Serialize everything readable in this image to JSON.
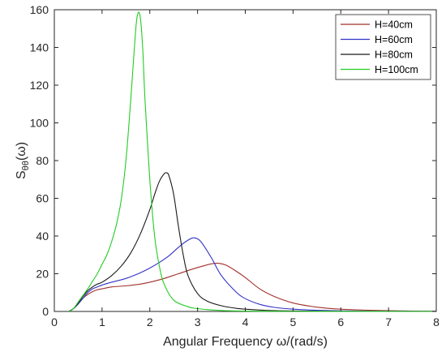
{
  "chart_data": {
    "type": "line",
    "title": "",
    "xlabel": "Angular Frequency  ω/(rad/s)",
    "ylabel": {
      "main": "S",
      "sub": "θθ",
      "tail": "(ω)"
    },
    "xlim": [
      0,
      8
    ],
    "ylim": [
      0,
      160
    ],
    "xticks": [
      "0",
      "1",
      "2",
      "3",
      "4",
      "5",
      "6",
      "7",
      "8"
    ],
    "yticks": [
      "0",
      "20",
      "40",
      "60",
      "80",
      "100",
      "120",
      "140",
      "160"
    ],
    "grid": false,
    "legend_position": "top-right",
    "series": [
      {
        "name": "H=40cm",
        "color": "#a0302a",
        "x": [
          0.3,
          0.4,
          0.5,
          0.6,
          0.7,
          0.8,
          0.9,
          1.0,
          1.2,
          1.5,
          1.8,
          2.0,
          2.3,
          2.6,
          2.9,
          3.1,
          3.3,
          3.45,
          3.6,
          3.8,
          4.0,
          4.3,
          4.6,
          5.0,
          5.5,
          6.0,
          6.5,
          7.0,
          7.5,
          8.0
        ],
        "y": [
          0,
          1.5,
          4,
          7,
          9,
          10.5,
          11.5,
          12,
          13,
          13.6,
          14.5,
          15.5,
          17.5,
          20,
          22.5,
          24,
          25.3,
          25.5,
          24.5,
          21.5,
          18,
          12,
          8,
          4.5,
          2.3,
          1.2,
          0.7,
          0.4,
          0.2,
          0.1
        ]
      },
      {
        "name": "H=60cm",
        "color": "#3232c8",
        "x": [
          0.3,
          0.4,
          0.5,
          0.6,
          0.7,
          0.8,
          0.9,
          1.0,
          1.2,
          1.5,
          1.8,
          2.0,
          2.2,
          2.4,
          2.6,
          2.75,
          2.9,
          3.0,
          3.1,
          3.3,
          3.5,
          3.8,
          4.0,
          4.3,
          4.6,
          5.0,
          5.5,
          6.0,
          7.0,
          8.0
        ],
        "y": [
          0,
          1.5,
          4,
          7,
          10,
          12,
          13,
          14,
          15.5,
          17.5,
          20.5,
          23,
          26,
          29.5,
          34,
          37,
          39,
          38.5,
          36,
          28,
          19,
          10.5,
          6.8,
          3.8,
          2.2,
          1.2,
          0.6,
          0.3,
          0.1,
          0.05
        ]
      },
      {
        "name": "H=80cm",
        "color": "#1a1a1a",
        "x": [
          0.3,
          0.4,
          0.5,
          0.6,
          0.7,
          0.8,
          0.9,
          1.0,
          1.2,
          1.4,
          1.6,
          1.8,
          2.0,
          2.1,
          2.2,
          2.3,
          2.35,
          2.4,
          2.5,
          2.6,
          2.7,
          2.8,
          3.0,
          3.2,
          3.5,
          3.8,
          4.0,
          4.5,
          5.0,
          6.0,
          8.0
        ],
        "y": [
          0,
          1.5,
          4.5,
          8,
          11,
          13,
          14.5,
          15.5,
          19,
          24,
          31,
          41,
          54,
          62,
          69,
          73,
          73.5,
          72,
          62,
          45,
          30,
          19,
          9.5,
          5.5,
          3,
          1.7,
          1.2,
          0.5,
          0.25,
          0.08,
          0.02
        ]
      },
      {
        "name": "H=100cm",
        "color": "#22cc22",
        "x": [
          0.3,
          0.4,
          0.5,
          0.6,
          0.7,
          0.8,
          0.9,
          1.0,
          1.1,
          1.2,
          1.3,
          1.4,
          1.5,
          1.6,
          1.7,
          1.75,
          1.8,
          1.85,
          1.9,
          2.0,
          2.1,
          2.2,
          2.3,
          2.5,
          2.8,
          3.0,
          3.5,
          4.0,
          5.0,
          6.0,
          8.0
        ],
        "y": [
          0,
          1.5,
          5,
          8.5,
          12,
          16,
          20,
          25,
          30,
          37,
          46,
          59,
          80,
          112,
          148,
          158,
          156,
          140,
          112,
          70,
          40,
          24,
          14.5,
          6,
          2.5,
          1.5,
          0.5,
          0.2,
          0.05,
          0.02,
          0
        ]
      }
    ]
  }
}
